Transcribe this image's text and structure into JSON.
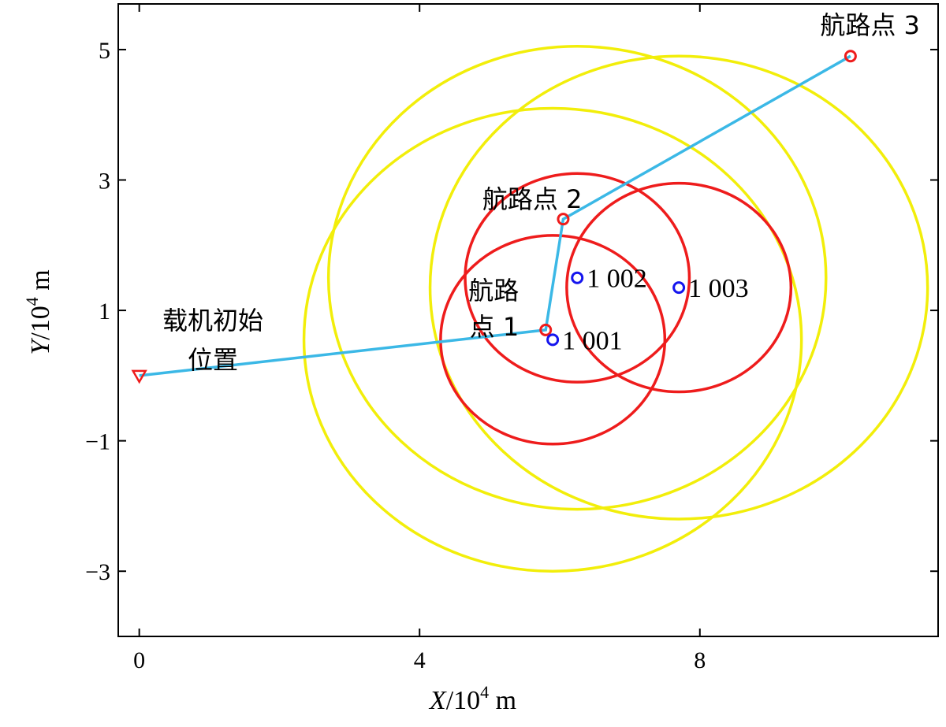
{
  "chart_data": {
    "type": "scatter",
    "title": "",
    "xlabel": {
      "var": "X",
      "unit_prefix": "/10",
      "exponent": "4",
      "unit": " m"
    },
    "ylabel": {
      "var": "Y",
      "unit_prefix": "/10",
      "exponent": "4",
      "unit": " m"
    },
    "xlim": [
      -0.3,
      11.4
    ],
    "ylim": [
      -4.0,
      5.7
    ],
    "x_ticks": [
      0,
      4,
      8
    ],
    "x_tick_labels": [
      "0",
      "4",
      "8"
    ],
    "y_ticks": [
      -3,
      -1,
      1,
      3,
      5
    ],
    "y_tick_labels": [
      "−3",
      "−1",
      "1",
      "3",
      "5"
    ],
    "grid": false,
    "colors": {
      "path": "#3bb8e6",
      "waypoint": "#ee1c1c",
      "target": "#1515ee",
      "inner_circle": "#ee1c1c",
      "outer_circle": "#f2ee0a"
    },
    "path": {
      "name": "",
      "points": [
        {
          "x": 0.0,
          "y": 0.0
        },
        {
          "x": 5.8,
          "y": 0.7
        },
        {
          "x": 6.05,
          "y": 2.4
        },
        {
          "x": 10.15,
          "y": 4.9
        }
      ]
    },
    "waypoints": [
      {
        "x": 5.8,
        "y": 0.7,
        "label": [
          "航路",
          "点 1"
        ]
      },
      {
        "x": 6.05,
        "y": 2.4,
        "label": [
          "航路点 2"
        ]
      },
      {
        "x": 10.15,
        "y": 4.9,
        "label": [
          "航路点 3"
        ]
      }
    ],
    "start_point": {
      "x": 0.0,
      "y": 0.0,
      "label": [
        "载机初始",
        "位置"
      ]
    },
    "targets": [
      {
        "x": 5.9,
        "y": 0.55,
        "label": "1 001"
      },
      {
        "x": 6.25,
        "y": 1.5,
        "label": "1 002"
      },
      {
        "x": 7.7,
        "y": 1.35,
        "label": "1 003"
      }
    ],
    "inner_circles": [
      {
        "cx": 5.9,
        "cy": 0.55,
        "r": 1.6
      },
      {
        "cx": 6.25,
        "cy": 1.5,
        "r": 1.6
      },
      {
        "cx": 7.7,
        "cy": 1.35,
        "r": 1.6
      }
    ],
    "outer_circles": [
      {
        "cx": 5.9,
        "cy": 0.55,
        "r": 3.55
      },
      {
        "cx": 6.25,
        "cy": 1.5,
        "r": 3.55
      },
      {
        "cx": 7.7,
        "cy": 1.35,
        "r": 3.55
      }
    ]
  }
}
